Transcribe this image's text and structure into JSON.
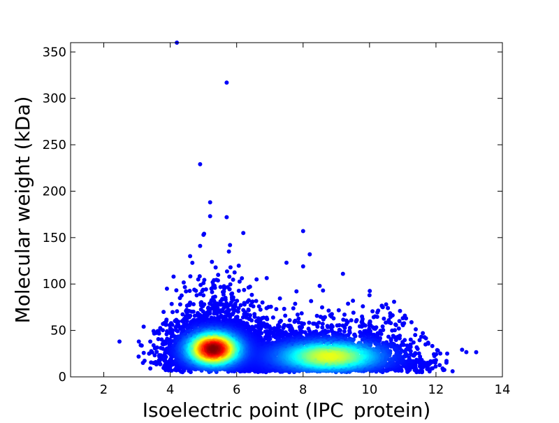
{
  "chart_data": {
    "type": "scatter",
    "title": "",
    "xlabel": "Isoelectric point (IPC_protein)",
    "ylabel": "Molecular weight (kDa)",
    "xlim": [
      1,
      14
    ],
    "ylim": [
      0,
      360
    ],
    "xticks": [
      2,
      4,
      6,
      8,
      10,
      12,
      14
    ],
    "yticks": [
      0,
      50,
      100,
      150,
      200,
      250,
      300,
      350
    ],
    "grid": false,
    "legend": "none",
    "colormap": "jet (point density)",
    "points": [
      [
        4.2,
        360
      ],
      [
        5.7,
        317
      ],
      [
        4.9,
        229
      ],
      [
        5.2,
        188
      ],
      [
        5.7,
        172
      ],
      [
        5.2,
        173
      ],
      [
        6.2,
        155
      ],
      [
        8.0,
        157
      ],
      [
        5.0,
        153
      ],
      [
        8.2,
        132
      ],
      [
        4.6,
        130
      ],
      [
        4.9,
        141
      ],
      [
        5.8,
        142
      ],
      [
        8.0,
        119
      ],
      [
        7.5,
        123
      ],
      [
        9.2,
        111
      ],
      [
        4.1,
        108
      ],
      [
        3.9,
        95
      ],
      [
        5.0,
        101
      ],
      [
        5.3,
        96
      ],
      [
        5.6,
        91
      ],
      [
        6.6,
        105
      ],
      [
        8.5,
        98
      ],
      [
        10.0,
        88
      ],
      [
        3.8,
        70
      ],
      [
        4.0,
        52
      ],
      [
        4.3,
        78
      ],
      [
        4.6,
        80
      ],
      [
        6.5,
        76
      ],
      [
        6.9,
        74
      ],
      [
        7.8,
        92
      ],
      [
        8.6,
        93
      ],
      [
        9.5,
        82
      ],
      [
        9.8,
        76
      ],
      [
        10.4,
        75
      ],
      [
        10.5,
        78
      ],
      [
        10.9,
        60
      ],
      [
        11.1,
        63
      ],
      [
        3.2,
        54
      ],
      [
        3.4,
        38
      ],
      [
        3.5,
        34
      ],
      [
        3.5,
        15
      ],
      [
        3.4,
        9
      ],
      [
        12.2,
        9
      ],
      [
        12.5,
        6
      ],
      [
        11.6,
        14
      ],
      [
        12.0,
        18
      ]
    ]
  }
}
